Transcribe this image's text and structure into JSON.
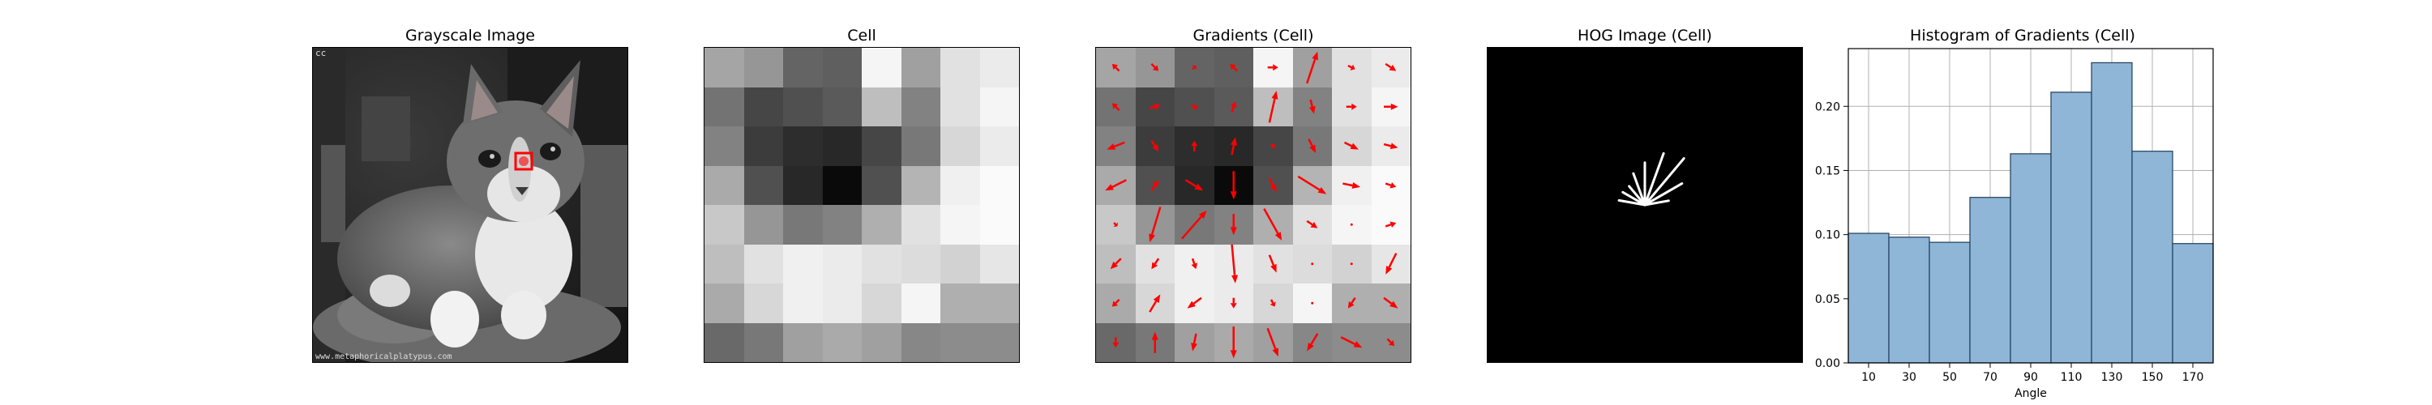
{
  "panels": {
    "grayscale_title": "Grayscale Image",
    "cell_title": "Cell",
    "gradients_title": "Gradients (Cell)",
    "hog_title": "HOG Image (Cell)",
    "hist_title": "Histogram of Gradients (Cell)"
  },
  "photo": {
    "subject": "grayscale kitten photo",
    "corner_mark": "cc",
    "watermark": "www.metaphoricalplatypus.com",
    "marker_color": "#ff0000"
  },
  "cell_grid": {
    "rows": 8,
    "cols": 8,
    "intensities": [
      [
        165,
        150,
        100,
        95,
        245,
        160,
        225,
        235
      ],
      [
        115,
        70,
        80,
        90,
        190,
        130,
        225,
        245
      ],
      [
        130,
        60,
        45,
        40,
        70,
        120,
        215,
        235
      ],
      [
        170,
        80,
        40,
        10,
        80,
        180,
        240,
        250
      ],
      [
        200,
        150,
        120,
        130,
        175,
        225,
        245,
        250
      ],
      [
        190,
        225,
        240,
        235,
        225,
        220,
        210,
        230
      ],
      [
        170,
        215,
        240,
        235,
        215,
        245,
        175,
        175
      ],
      [
        105,
        120,
        160,
        170,
        160,
        135,
        140,
        140
      ]
    ]
  },
  "gradient_arrows": {
    "color": "#ff0000",
    "vectors": [
      [
        [
          -0.2,
          -0.2
        ],
        [
          0.2,
          0.2
        ],
        [
          0.1,
          -0.1
        ],
        [
          -0.2,
          -0.2
        ],
        [
          0.3,
          0.0
        ],
        [
          0.3,
          -0.9
        ],
        [
          0.2,
          0.1
        ],
        [
          0.3,
          0.2
        ]
      ],
      [
        [
          -0.2,
          -0.2
        ],
        [
          0.3,
          -0.1
        ],
        [
          0.2,
          0.1
        ],
        [
          0.1,
          -0.3
        ],
        [
          0.2,
          -0.9
        ],
        [
          0.1,
          0.4
        ],
        [
          0.3,
          0.0
        ],
        [
          0.4,
          0.0
        ]
      ],
      [
        [
          -0.5,
          0.2
        ],
        [
          0.2,
          0.3
        ],
        [
          0.0,
          -0.3
        ],
        [
          0.1,
          -0.5
        ],
        [
          0.1,
          0.1
        ],
        [
          0.2,
          0.4
        ],
        [
          0.4,
          0.2
        ],
        [
          0.4,
          0.1
        ]
      ],
      [
        [
          -0.6,
          0.3
        ],
        [
          0.2,
          -0.3
        ],
        [
          0.5,
          0.3
        ],
        [
          0.0,
          0.8
        ],
        [
          0.2,
          0.4
        ],
        [
          0.8,
          0.5
        ],
        [
          0.5,
          0.1
        ],
        [
          0.3,
          0.1
        ]
      ],
      [
        [
          0.1,
          0.1
        ],
        [
          -0.3,
          1.0
        ],
        [
          0.7,
          -0.8
        ],
        [
          0.0,
          0.6
        ],
        [
          0.5,
          0.9
        ],
        [
          0.3,
          0.2
        ],
        [
          0.0,
          0.0
        ],
        [
          0.3,
          -0.1
        ]
      ],
      [
        [
          -0.3,
          0.3
        ],
        [
          -0.2,
          0.3
        ],
        [
          0.1,
          0.3
        ],
        [
          0.1,
          1.1
        ],
        [
          0.2,
          0.5
        ],
        [
          0.0,
          0.0
        ],
        [
          0.0,
          0.0
        ],
        [
          -0.3,
          0.6
        ]
      ],
      [
        [
          -0.2,
          0.2
        ],
        [
          0.3,
          -0.5
        ],
        [
          -0.4,
          0.3
        ],
        [
          0.0,
          0.3
        ],
        [
          0.1,
          0.2
        ],
        [
          0.0,
          0.0
        ],
        [
          -0.2,
          0.3
        ],
        [
          0.4,
          0.3
        ]
      ],
      [
        [
          0.0,
          0.3
        ],
        [
          0.0,
          -0.6
        ],
        [
          -0.1,
          0.5
        ],
        [
          0.0,
          0.9
        ],
        [
          0.3,
          0.8
        ],
        [
          -0.3,
          0.5
        ],
        [
          0.6,
          0.3
        ],
        [
          0.2,
          0.2
        ]
      ]
    ]
  },
  "hog_rays": {
    "color": "#ffffff",
    "angles_deg": [
      10,
      30,
      50,
      70,
      90,
      110,
      130,
      150,
      170
    ],
    "weights": [
      0.101,
      0.098,
      0.094,
      0.129,
      0.163,
      0.211,
      0.234,
      0.165,
      0.093
    ]
  },
  "chart_data": {
    "type": "bar",
    "title": "Histogram of Gradients (Cell)",
    "xlabel": "Angle",
    "ylabel": "",
    "categories": [
      "10",
      "30",
      "50",
      "70",
      "90",
      "110",
      "130",
      "150",
      "170"
    ],
    "x_tick_labels": [
      "10",
      "30",
      "50",
      "70",
      "90",
      "110",
      "130",
      "150",
      "170"
    ],
    "values": [
      0.101,
      0.098,
      0.094,
      0.129,
      0.163,
      0.211,
      0.234,
      0.165,
      0.093
    ],
    "ylim": [
      0,
      0.245
    ],
    "y_tick_labels": [
      "0.00",
      "0.05",
      "0.10",
      "0.15",
      "0.20"
    ],
    "y_ticks": [
      0.0,
      0.05,
      0.1,
      0.15,
      0.2
    ],
    "grid": true,
    "bar_color": "#8fb6d6",
    "bar_edge_color": "#1f3d5c"
  }
}
